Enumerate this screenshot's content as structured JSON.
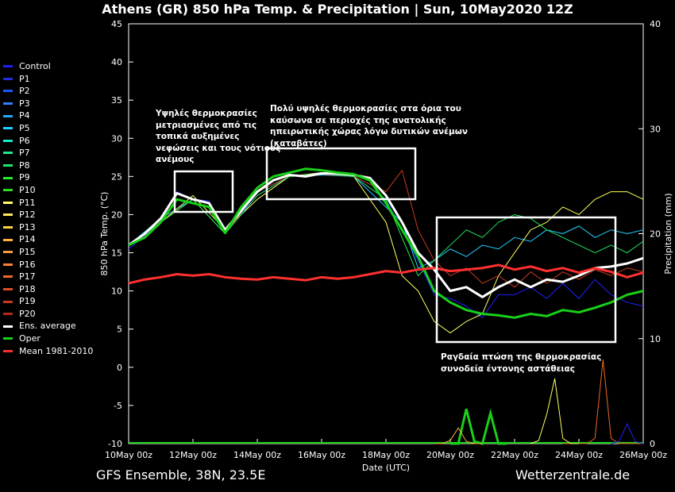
{
  "title": "Athens  (GR)  850 hPa Temp. & Precipitation | Sun, 10May2020 12Z",
  "footer_left": "GFS Ensemble, 38N, 23.5E",
  "footer_right": "Wetterzentrale.de",
  "annotations": [
    {
      "text": "Υψηλές θερμοκρασίες\nμετριασμένες από τις\nτοπικά αυξημένες\nνεφώσεις και τους νότιους\nανέμους"
    },
    {
      "text": "Πολύ υψηλές θερμοκρασίες στα όρια του\nκαύσωνα σε περιοχές της ανατολικής\nηπειρωτικής χώρας λόγω δυτικών ανέμων\n(καταβάτες)"
    },
    {
      "text": "Ραγδαία πτώση της θερμοκρασίας\nσυνοδεία έντονης αστάθειας"
    }
  ],
  "chart_data": {
    "type": "line",
    "title": "Athens  (GR)  850 hPa Temp. & Precipitation | Sun, 10May2020 12Z",
    "xlabel": "Date (UTC)",
    "ylabel": "850 hPa Temp. (°C)",
    "ylabel_right": "Precipitation (mm)",
    "ylim": [
      -10,
      45
    ],
    "ylim_right": [
      0,
      40
    ],
    "yticks": [
      "45",
      "40",
      "35",
      "30",
      "25",
      "20",
      "15",
      "10",
      "5",
      "0",
      "-5",
      "-10"
    ],
    "yticks_right": [
      "40",
      "30",
      "20",
      "10",
      "0"
    ],
    "xticks": [
      "10May 00z",
      "12May 00z",
      "14May 00z",
      "16May 00z",
      "18May 00z",
      "20May 00z",
      "22May 00z",
      "24May 00z",
      "26May 00z"
    ],
    "x_hours": [
      0,
      384
    ],
    "legend": [
      {
        "name": "Control",
        "color": "#2020ff"
      },
      {
        "name": "P1",
        "color": "#1e2ee0"
      },
      {
        "name": "P2",
        "color": "#2255ff"
      },
      {
        "name": "P3",
        "color": "#2f7fff"
      },
      {
        "name": "P4",
        "color": "#25a8ff"
      },
      {
        "name": "P5",
        "color": "#22d0ff"
      },
      {
        "name": "P6",
        "color": "#1fe8c8"
      },
      {
        "name": "P7",
        "color": "#1fe890"
      },
      {
        "name": "P8",
        "color": "#1fe860"
      },
      {
        "name": "P9",
        "color": "#25ee30"
      },
      {
        "name": "P10",
        "color": "#30d820"
      },
      {
        "name": "P11",
        "color": "#ffff60"
      },
      {
        "name": "P12",
        "color": "#ffe860"
      },
      {
        "name": "P13",
        "color": "#ffd040"
      },
      {
        "name": "P14",
        "color": "#ffb040"
      },
      {
        "name": "P15",
        "color": "#ff9a40"
      },
      {
        "name": "P16",
        "color": "#ff8030"
      },
      {
        "name": "P17",
        "color": "#f06828"
      },
      {
        "name": "P18",
        "color": "#e04c28"
      },
      {
        "name": "P19",
        "color": "#c83a20"
      },
      {
        "name": "P20",
        "color": "#b02a18"
      },
      {
        "name": "Ens. average",
        "color": "#ffffff"
      },
      {
        "name": "Oper",
        "color": "#18d018"
      },
      {
        "name": "Mean 1981-2010",
        "color": "#ff3030"
      }
    ],
    "series": [
      {
        "name": "Ens. average",
        "x": [
          0,
          12,
          24,
          36,
          48,
          60,
          72,
          84,
          96,
          108,
          120,
          132,
          144,
          156,
          168,
          180,
          192,
          204,
          216,
          228,
          240,
          252,
          264,
          276,
          288,
          300,
          312,
          324,
          336,
          348,
          360,
          372,
          384
        ],
        "y": [
          16,
          17.5,
          19.5,
          22.8,
          22,
          21.5,
          18,
          20.5,
          23,
          24.5,
          25.2,
          25,
          25.4,
          25.4,
          25.2,
          24.8,
          22.5,
          19,
          15,
          12.8,
          10,
          10.5,
          9.2,
          10.5,
          11.5,
          10.5,
          11.5,
          11.2,
          12,
          13,
          13.2,
          13.6,
          14.3
        ]
      },
      {
        "name": "Oper",
        "x": [
          0,
          12,
          24,
          36,
          48,
          60,
          72,
          84,
          96,
          108,
          120,
          132,
          144,
          156,
          168,
          180,
          192,
          204,
          216,
          228,
          240,
          252,
          264,
          276,
          288,
          300,
          312,
          324,
          336,
          348,
          360,
          372,
          384
        ],
        "y": [
          16,
          17,
          19,
          22,
          21.5,
          21,
          17.6,
          21,
          23.5,
          25,
          25.5,
          26,
          25.8,
          25.5,
          25.3,
          24.5,
          21.5,
          18,
          14.5,
          10,
          8.5,
          7.5,
          7,
          6.8,
          6.5,
          7,
          6.7,
          7.5,
          7.2,
          7.8,
          8.5,
          9.5,
          10
        ]
      },
      {
        "name": "Mean 1981-2010",
        "x": [
          0,
          12,
          24,
          36,
          48,
          60,
          72,
          84,
          96,
          108,
          120,
          132,
          144,
          156,
          168,
          180,
          192,
          204,
          216,
          228,
          240,
          252,
          264,
          276,
          288,
          300,
          312,
          324,
          336,
          348,
          360,
          372,
          384
        ],
        "y": [
          11,
          11.5,
          11.8,
          12.2,
          12,
          12.2,
          11.8,
          11.6,
          11.5,
          11.8,
          11.6,
          11.4,
          11.8,
          11.6,
          11.8,
          12.2,
          12.6,
          12.4,
          12.8,
          13,
          12.6,
          12.8,
          13,
          13.4,
          12.8,
          13.2,
          12.6,
          13,
          12.4,
          13,
          12.5,
          11.8,
          12.4
        ]
      },
      {
        "name": "Control",
        "x": [
          0,
          24,
          36,
          48,
          60,
          72,
          96,
          120,
          144,
          168,
          192,
          204,
          216,
          228,
          240,
          252,
          264,
          276,
          288,
          300,
          312,
          324,
          336,
          348,
          360,
          372,
          384
        ],
        "y": [
          15.5,
          19,
          23,
          22,
          21.8,
          17.8,
          22.5,
          25,
          25.5,
          25,
          22,
          18,
          14,
          9.5,
          9,
          8,
          6.5,
          9.5,
          9.5,
          10.5,
          9,
          11,
          9,
          11.5,
          9.5,
          8.5,
          8
        ]
      },
      {
        "name": "P5",
        "x": [
          0,
          24,
          48,
          72,
          96,
          120,
          144,
          168,
          192,
          204,
          216,
          228,
          240,
          252,
          264,
          276,
          288,
          300,
          312,
          324,
          336,
          348,
          360,
          372,
          384
        ],
        "y": [
          16,
          19.5,
          22,
          17.5,
          23,
          25,
          25.2,
          25,
          21,
          19,
          13,
          14,
          15.5,
          14.5,
          16,
          15.5,
          17,
          16.5,
          18,
          17.5,
          18.5,
          17,
          18,
          17.5,
          18
        ]
      },
      {
        "name": "P11",
        "x": [
          0,
          24,
          48,
          72,
          96,
          120,
          144,
          168,
          180,
          192,
          204,
          216,
          228,
          240,
          252,
          264,
          276,
          288,
          300,
          312,
          324,
          336,
          348,
          360,
          372,
          384
        ],
        "y": [
          16,
          19,
          22.5,
          18,
          22,
          25,
          25.5,
          25,
          22,
          19,
          12,
          10,
          6,
          4.5,
          6,
          7,
          12,
          15,
          18,
          19,
          21,
          20,
          22,
          23,
          23,
          22
        ]
      },
      {
        "name": "P19",
        "x": [
          0,
          24,
          48,
          72,
          96,
          120,
          144,
          168,
          192,
          204,
          216,
          228,
          240,
          252,
          264,
          276,
          288,
          300,
          312,
          324,
          336,
          348,
          360,
          372,
          384
        ],
        "y": [
          16,
          19,
          22,
          17.5,
          23,
          25,
          25.3,
          25,
          23,
          25.8,
          18,
          14,
          12,
          13,
          11,
          12,
          10.5,
          12.5,
          11,
          12.5,
          11.5,
          12.8,
          12,
          13,
          12.5
        ]
      },
      {
        "name": "P8",
        "x": [
          0,
          24,
          48,
          72,
          96,
          120,
          144,
          168,
          192,
          204,
          216,
          228,
          240,
          252,
          264,
          276,
          288,
          300,
          312,
          324,
          336,
          348,
          360,
          372,
          384
        ],
        "y": [
          16,
          19,
          22,
          17.5,
          22.5,
          25,
          25.4,
          25,
          22,
          17,
          12,
          14,
          16,
          18,
          17,
          19,
          20,
          19.5,
          18,
          17,
          16,
          15,
          16,
          15,
          16.5
        ]
      }
    ],
    "precip_series": [
      {
        "name": "P17",
        "x": [
          324,
          342,
          348,
          354,
          360,
          366,
          372,
          384
        ],
        "y": [
          0,
          0,
          0.5,
          8,
          0.5,
          0,
          0,
          0
        ]
      },
      {
        "name": "P11",
        "x": [
          300,
          306,
          312,
          318,
          324,
          330,
          336
        ],
        "y": [
          0,
          0.3,
          2.8,
          6.2,
          0.5,
          0,
          0
        ]
      },
      {
        "name": "Oper",
        "x": [
          240,
          246,
          252,
          258,
          264,
          270,
          276,
          282
        ],
        "y": [
          0,
          0,
          3.3,
          0.2,
          0,
          2.9,
          0,
          0
        ]
      },
      {
        "name": "P14",
        "x": [
          228,
          234,
          240,
          246,
          252,
          258,
          264
        ],
        "y": [
          0,
          0,
          0.3,
          1.5,
          0.2,
          0,
          0
        ]
      },
      {
        "name": "Control",
        "x": [
          360,
          366,
          372,
          378,
          384
        ],
        "y": [
          0,
          0.2,
          1.9,
          0.2,
          0
        ]
      }
    ]
  }
}
